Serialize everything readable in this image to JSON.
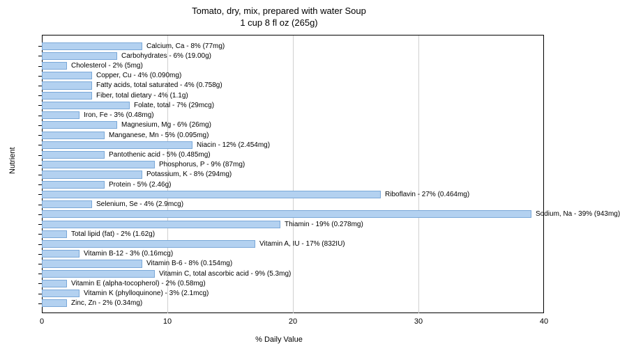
{
  "title_line1": "Tomato, dry, mix, prepared with water Soup",
  "title_line2": "1 cup 8 fl oz (265g)",
  "y_axis_label": "Nutrient",
  "x_axis_label": "% Daily Value",
  "chart": {
    "type": "bar-horizontal",
    "xlim": [
      0,
      40
    ],
    "xtick_step": 10,
    "x_ticks": [
      0,
      10,
      20,
      30,
      40
    ],
    "bar_color": "#b3d1f0",
    "bar_border_color": "#7aa8d8",
    "grid_color": "#d0d0d0",
    "background_color": "#ffffff",
    "label_fontsize": 10,
    "axis_fontsize": 11,
    "title_fontsize": 13
  },
  "nutrients": [
    {
      "label": "Calcium, Ca - 8% (77mg)",
      "value": 8
    },
    {
      "label": "Carbohydrates - 6% (19.00g)",
      "value": 6
    },
    {
      "label": "Cholesterol - 2% (5mg)",
      "value": 2
    },
    {
      "label": "Copper, Cu - 4% (0.090mg)",
      "value": 4
    },
    {
      "label": "Fatty acids, total saturated - 4% (0.758g)",
      "value": 4
    },
    {
      "label": "Fiber, total dietary - 4% (1.1g)",
      "value": 4
    },
    {
      "label": "Folate, total - 7% (29mcg)",
      "value": 7
    },
    {
      "label": "Iron, Fe - 3% (0.48mg)",
      "value": 3
    },
    {
      "label": "Magnesium, Mg - 6% (26mg)",
      "value": 6
    },
    {
      "label": "Manganese, Mn - 5% (0.095mg)",
      "value": 5
    },
    {
      "label": "Niacin - 12% (2.454mg)",
      "value": 12
    },
    {
      "label": "Pantothenic acid - 5% (0.485mg)",
      "value": 5
    },
    {
      "label": "Phosphorus, P - 9% (87mg)",
      "value": 9
    },
    {
      "label": "Potassium, K - 8% (294mg)",
      "value": 8
    },
    {
      "label": "Protein - 5% (2.46g)",
      "value": 5
    },
    {
      "label": "Riboflavin - 27% (0.464mg)",
      "value": 27
    },
    {
      "label": "Selenium, Se - 4% (2.9mcg)",
      "value": 4
    },
    {
      "label": "Sodium, Na - 39% (943mg)",
      "value": 39
    },
    {
      "label": "Thiamin - 19% (0.278mg)",
      "value": 19
    },
    {
      "label": "Total lipid (fat) - 2% (1.62g)",
      "value": 2
    },
    {
      "label": "Vitamin A, IU - 17% (832IU)",
      "value": 17
    },
    {
      "label": "Vitamin B-12 - 3% (0.16mcg)",
      "value": 3
    },
    {
      "label": "Vitamin B-6 - 8% (0.154mg)",
      "value": 8
    },
    {
      "label": "Vitamin C, total ascorbic acid - 9% (5.3mg)",
      "value": 9
    },
    {
      "label": "Vitamin E (alpha-tocopherol) - 2% (0.58mg)",
      "value": 2
    },
    {
      "label": "Vitamin K (phylloquinone) - 3% (2.1mcg)",
      "value": 3
    },
    {
      "label": "Zinc, Zn - 2% (0.34mg)",
      "value": 2
    }
  ]
}
